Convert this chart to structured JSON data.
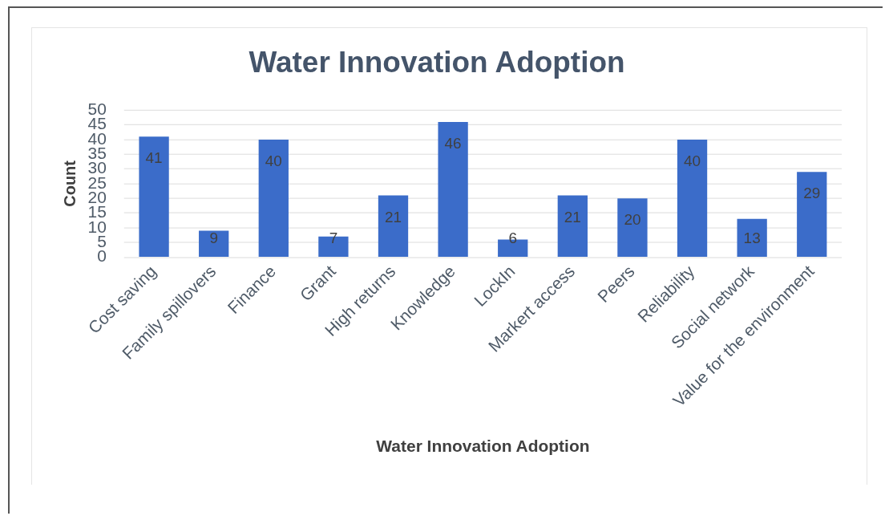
{
  "chart_data": {
    "type": "bar",
    "title": "Water Innovation Adoption",
    "xlabel": "Water Innovation Adoption",
    "ylabel": "Count",
    "categories": [
      "Cost saving",
      "Family spillovers",
      "Finance",
      "Grant",
      "High returns",
      "Knowledge",
      "LockIn",
      "Markert access",
      "Peers",
      "Reliability",
      "Social network",
      "Value for the environment"
    ],
    "values": [
      41,
      9,
      40,
      7,
      21,
      46,
      6,
      21,
      20,
      40,
      13,
      29
    ],
    "color": "#3b6cc9",
    "ylim": [
      0,
      50
    ],
    "yticks": [
      0,
      5,
      10,
      15,
      20,
      25,
      30,
      35,
      40,
      45,
      50
    ],
    "grid": "y",
    "data_labels": true
  }
}
